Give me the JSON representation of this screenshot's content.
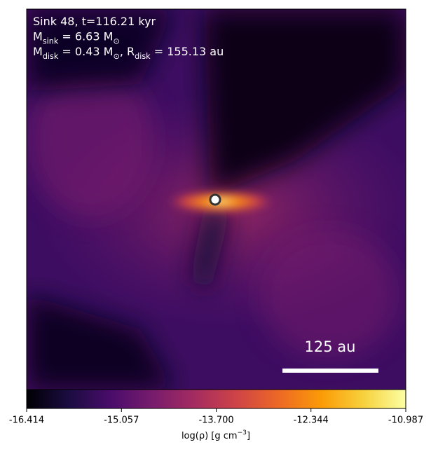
{
  "chart_data": {
    "type": "image",
    "annotations": [
      [
        {
          "text": "Sink 48, t=116.21 kyr"
        }
      ],
      [
        {
          "text": "M"
        },
        {
          "sub": "sink"
        },
        {
          "text": " = 6.63 M"
        },
        {
          "sub": "⊙"
        }
      ],
      [
        {
          "text": "M"
        },
        {
          "sub": "disk"
        },
        {
          "text": " = 0.43 M"
        },
        {
          "sub": "⊙"
        },
        {
          "text": ", R"
        },
        {
          "sub": "disk"
        },
        {
          "text": " = 155.13 au"
        }
      ]
    ],
    "scale_bar_label": "125 au",
    "colormap": "inferno",
    "colorbar": {
      "label": [
        {
          "text": "log(ρ) [g cm"
        },
        {
          "sup": "−3"
        },
        {
          "text": "]"
        }
      ],
      "lim": [
        -16.414,
        -10.987
      ],
      "ticks": [
        -16.414,
        -15.057,
        {
          "value": -13.7,
          "label": "-13.700"
        },
        -12.344,
        -10.987
      ]
    }
  }
}
